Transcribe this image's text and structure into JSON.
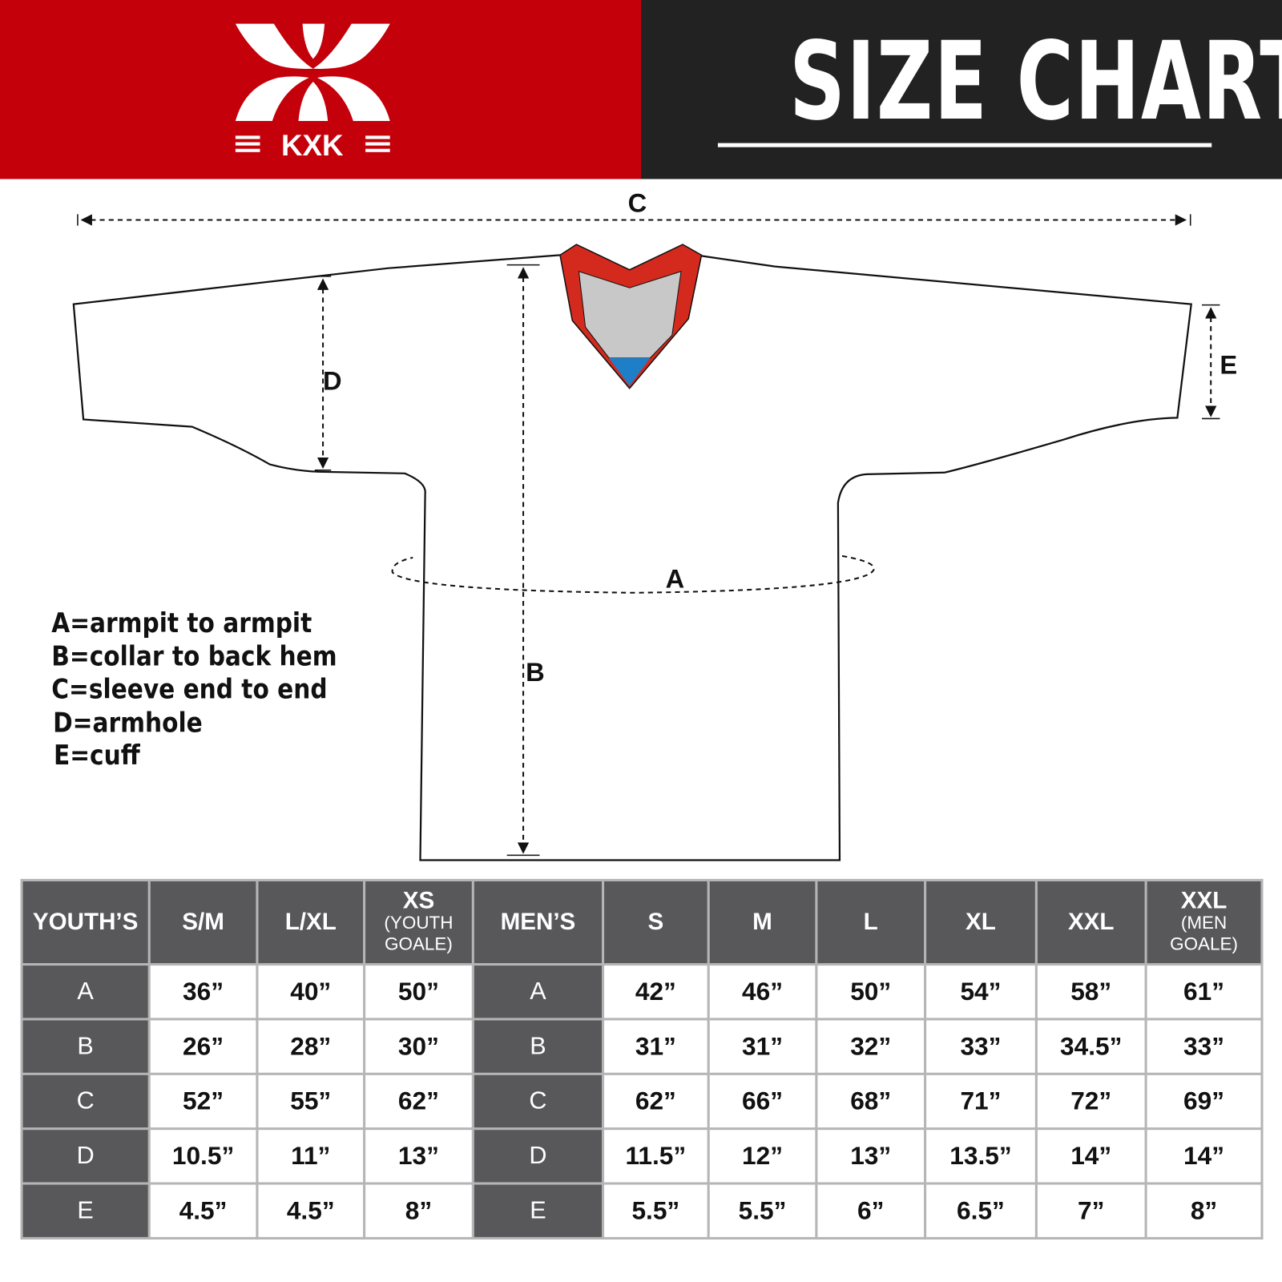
{
  "header": {
    "brand": "KXK",
    "title": "SIZE CHART",
    "colors": {
      "brand_red": "#c4000a",
      "dark": "#222222",
      "table_dark": "#58585a"
    }
  },
  "diagram": {
    "labels": {
      "a": "A",
      "b": "B",
      "c": "C",
      "d": "D",
      "e": "E"
    },
    "legend": [
      "A=armpit to armpit",
      "B=collar to back hem",
      "C=sleeve end to end",
      "D=armhole",
      "E=cuff"
    ],
    "colors": {
      "collar": "#d42a1e",
      "collar_inner": "#c8c8c8",
      "collar_tip": "#1e7fc8"
    }
  },
  "table": {
    "youth_header": "YOUTH’S",
    "youth_sizes": [
      {
        "main": "S/M",
        "sub": ""
      },
      {
        "main": "L/XL",
        "sub": ""
      },
      {
        "main": "XS",
        "sub": "(YOUTH GOALE)"
      }
    ],
    "men_header": "MEN’S",
    "men_sizes": [
      {
        "main": "S",
        "sub": ""
      },
      {
        "main": "M",
        "sub": ""
      },
      {
        "main": "L",
        "sub": ""
      },
      {
        "main": "XL",
        "sub": ""
      },
      {
        "main": "XXL",
        "sub": ""
      },
      {
        "main": "XXL",
        "sub": "(MEN GOALE)"
      }
    ],
    "rows": [
      {
        "label": "A",
        "youth": [
          "36”",
          "40”",
          "50”"
        ],
        "men": [
          "42”",
          "46”",
          "50”",
          "54”",
          "58”",
          "61”"
        ]
      },
      {
        "label": "B",
        "youth": [
          "26”",
          "28”",
          "30”"
        ],
        "men": [
          "31”",
          "31”",
          "32”",
          "33”",
          "34.5”",
          "33”"
        ]
      },
      {
        "label": "C",
        "youth": [
          "52”",
          "55”",
          "62”"
        ],
        "men": [
          "62”",
          "66”",
          "68”",
          "71”",
          "72”",
          "69”"
        ]
      },
      {
        "label": "D",
        "youth": [
          "10.5”",
          "11”",
          "13”"
        ],
        "men": [
          "11.5”",
          "12”",
          "13”",
          "13.5”",
          "14”",
          "14”"
        ]
      },
      {
        "label": "E",
        "youth": [
          "4.5”",
          "4.5”",
          "8”"
        ],
        "men": [
          "5.5”",
          "5.5”",
          "6”",
          "6.5”",
          "7”",
          "8”"
        ]
      }
    ]
  }
}
